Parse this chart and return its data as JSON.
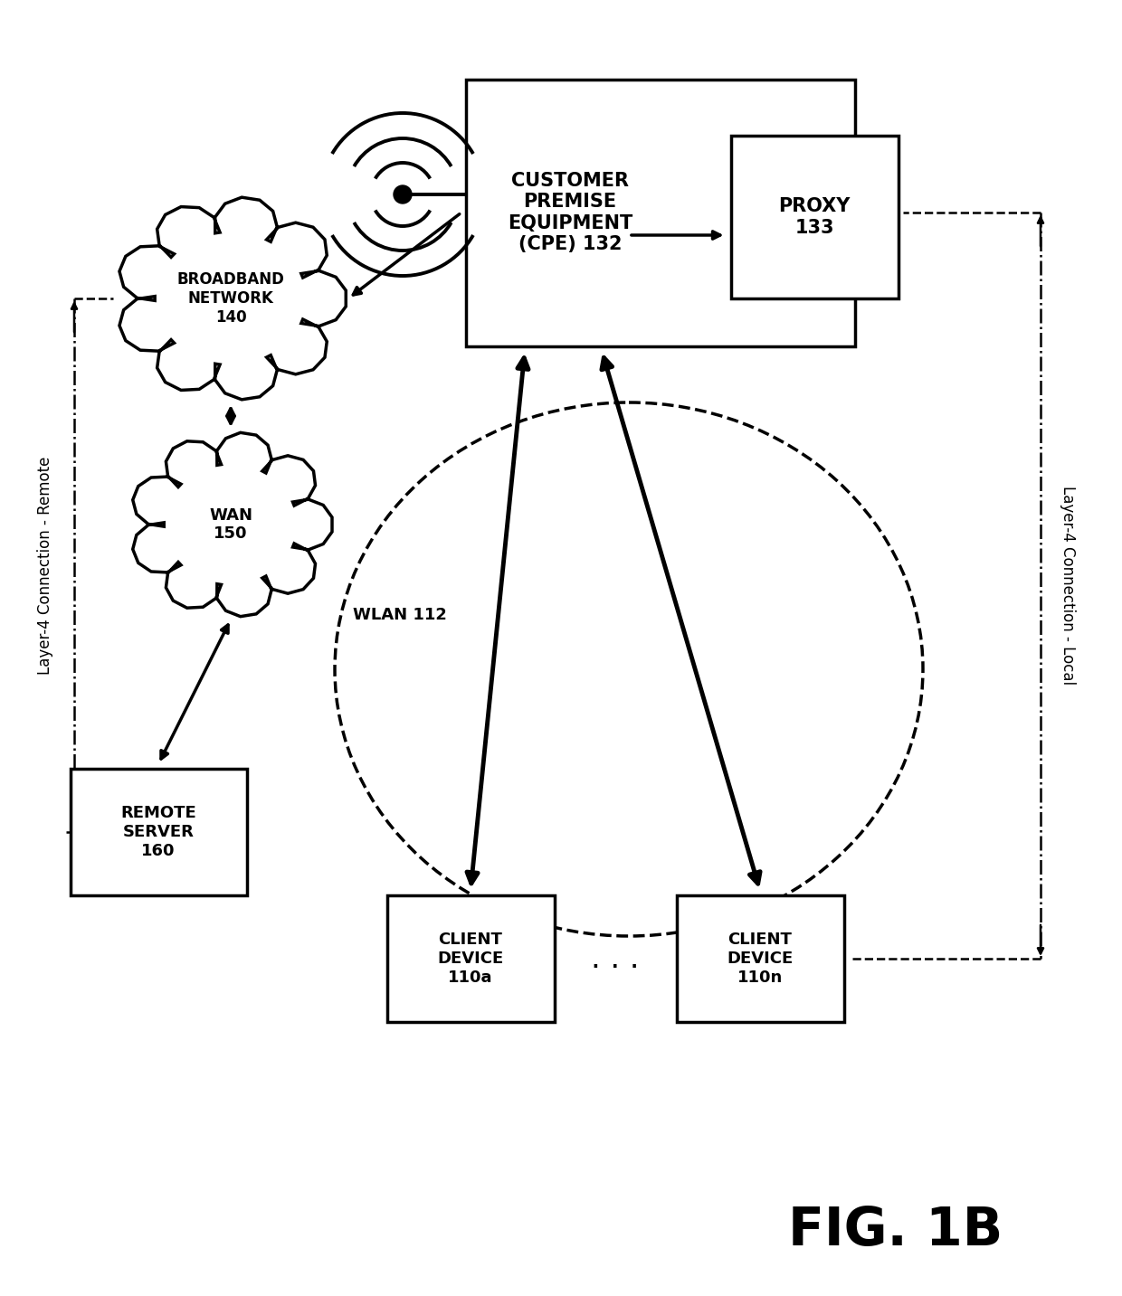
{
  "background_color": "#ffffff",
  "fig_label": "FIG. 1B",
  "layer4_remote_label": "Layer-4 Connection - Remote",
  "layer4_local_label": "Layer-4 Connection - Local",
  "wlan_label": "WLAN 112",
  "cpe_label": "CUSTOMER\nPREMISE\nEQUIPMENT\n(CPE) 132",
  "proxy_label": "PROXY\n133",
  "broadband_label": "BROADBAND\nNETWORK\n140",
  "wan_label": "WAN\n150",
  "remote_server_label": "REMOTE\nSERVER\n160",
  "client_a_label": "CLIENT\nDEVICE\n110a",
  "client_n_label": "CLIENT\nDEVICE\n110n",
  "dots_label": ". . ."
}
